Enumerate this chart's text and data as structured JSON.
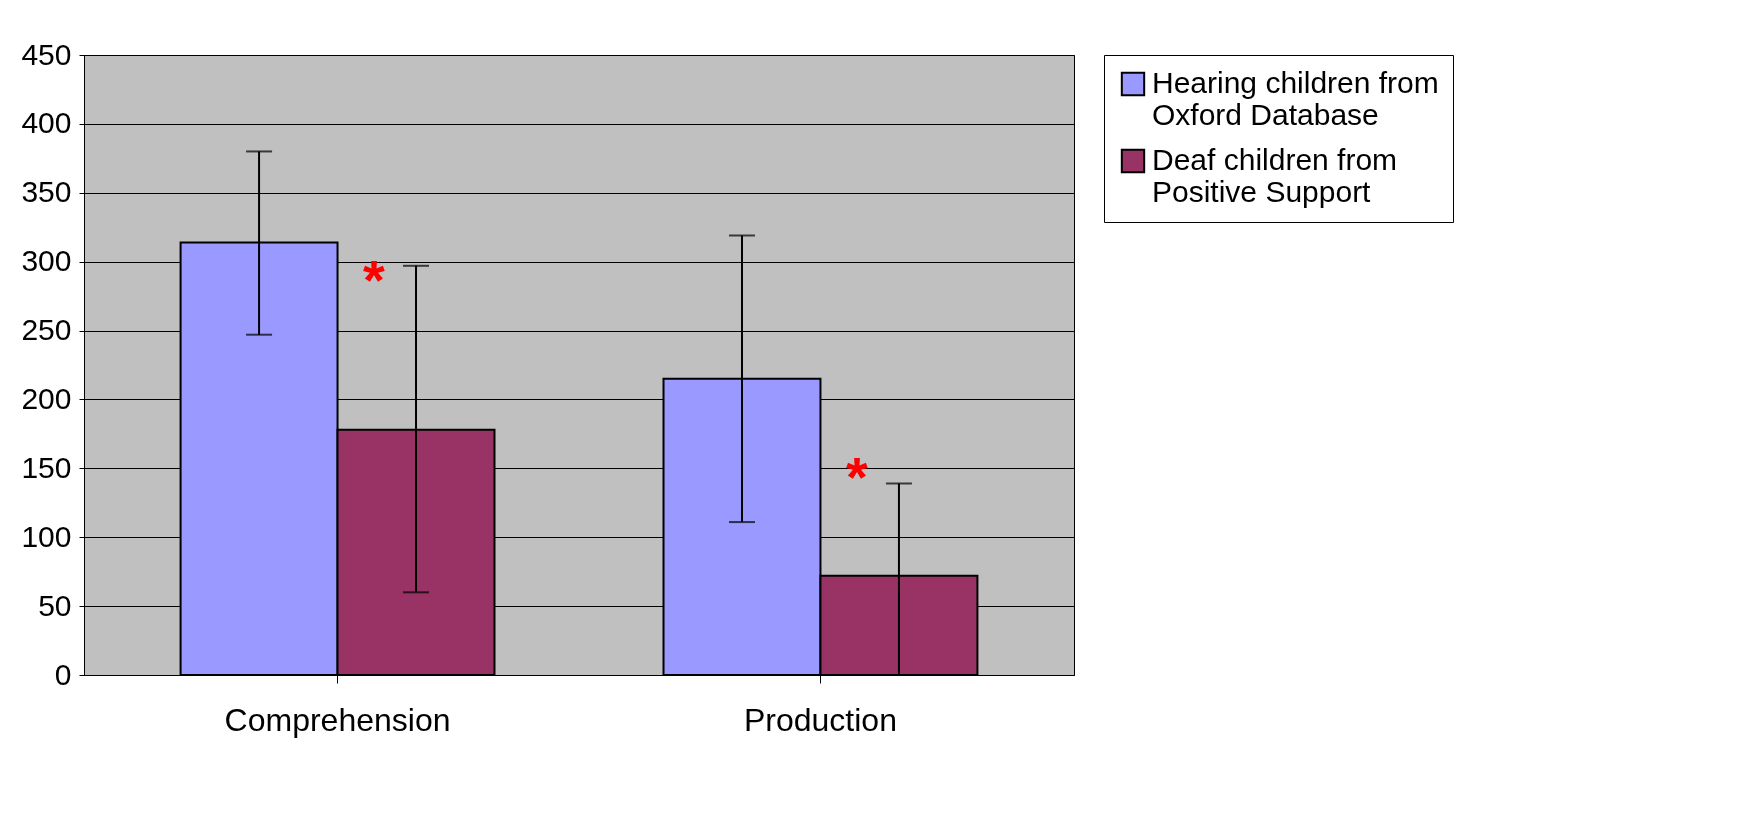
{
  "chart_data": {
    "type": "bar",
    "categories": [
      "Comprehension",
      "Production"
    ],
    "series": [
      {
        "name": "Hearing children from Oxford Database",
        "color": "#9999ff",
        "values": [
          314,
          215
        ],
        "errors": [
          [
            247,
            380
          ],
          [
            111,
            319
          ]
        ]
      },
      {
        "name": "Deaf children from Positive Support",
        "color": "#993366",
        "values": [
          178,
          72
        ],
        "errors": [
          [
            60,
            297
          ],
          [
            0,
            139
          ]
        ]
      }
    ],
    "ylim": [
      0,
      450
    ],
    "yticks": [
      0,
      50,
      100,
      150,
      200,
      250,
      300,
      350,
      400,
      450
    ],
    "grid": "y",
    "legend": "right",
    "annotations": [
      {
        "text": "*",
        "x": "Comprehension",
        "y": 285
      },
      {
        "text": "*",
        "x": "Production",
        "y": 142
      }
    ]
  }
}
